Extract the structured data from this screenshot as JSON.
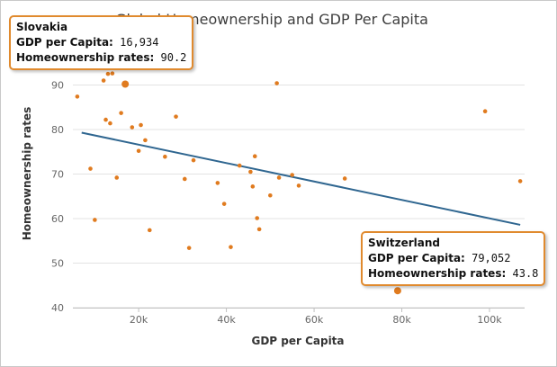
{
  "chart_data": {
    "type": "scatter",
    "title": "Global Homeownership and GDP Per Capita",
    "xlabel": "GDP per Capita",
    "ylabel": "Homeownership rates",
    "xlim": [
      5000,
      108000
    ],
    "ylim": [
      40,
      100
    ],
    "xticks": [
      20000,
      40000,
      60000,
      80000,
      100000
    ],
    "xtick_labels": [
      "20k",
      "40k",
      "60k",
      "80k",
      "100k"
    ],
    "yticks": [
      40,
      50,
      60,
      70,
      80,
      90
    ],
    "ytick_labels": [
      "40",
      "50",
      "60",
      "70",
      "80",
      "90"
    ],
    "marker_color": "#e07b1f",
    "trend_color": "#2f6690",
    "trendline": {
      "x": [
        7000,
        107000
      ],
      "y": [
        79.3,
        58.6
      ]
    },
    "points": [
      {
        "x": 6000,
        "y": 87.4
      },
      {
        "x": 9000,
        "y": 71.2
      },
      {
        "x": 10000,
        "y": 59.7
      },
      {
        "x": 12000,
        "y": 91.0
      },
      {
        "x": 12500,
        "y": 82.2
      },
      {
        "x": 13000,
        "y": 92.5
      },
      {
        "x": 13500,
        "y": 81.4
      },
      {
        "x": 14000,
        "y": 92.6
      },
      {
        "x": 15000,
        "y": 69.2
      },
      {
        "x": 16000,
        "y": 83.7
      },
      {
        "x": 16934,
        "y": 90.2,
        "highlight": true
      },
      {
        "x": 18500,
        "y": 80.5
      },
      {
        "x": 20000,
        "y": 75.2
      },
      {
        "x": 20500,
        "y": 81.0
      },
      {
        "x": 21500,
        "y": 77.6
      },
      {
        "x": 22500,
        "y": 57.4
      },
      {
        "x": 26000,
        "y": 73.9
      },
      {
        "x": 28500,
        "y": 82.9
      },
      {
        "x": 30500,
        "y": 68.9
      },
      {
        "x": 31500,
        "y": 53.4
      },
      {
        "x": 32500,
        "y": 73.1
      },
      {
        "x": 38000,
        "y": 68.0
      },
      {
        "x": 39500,
        "y": 63.3
      },
      {
        "x": 41000,
        "y": 53.6
      },
      {
        "x": 43000,
        "y": 71.9
      },
      {
        "x": 45500,
        "y": 70.5
      },
      {
        "x": 46000,
        "y": 67.2
      },
      {
        "x": 46500,
        "y": 74.0
      },
      {
        "x": 47000,
        "y": 60.1
      },
      {
        "x": 47500,
        "y": 57.6
      },
      {
        "x": 50000,
        "y": 65.2
      },
      {
        "x": 51500,
        "y": 90.4
      },
      {
        "x": 52000,
        "y": 69.2
      },
      {
        "x": 55000,
        "y": 69.8
      },
      {
        "x": 56500,
        "y": 67.4
      },
      {
        "x": 67000,
        "y": 69.0
      },
      {
        "x": 79052,
        "y": 43.8,
        "highlight": true
      },
      {
        "x": 99000,
        "y": 84.1
      },
      {
        "x": 107000,
        "y": 68.4
      }
    ]
  },
  "tooltips": [
    {
      "name": "Slovakia",
      "gdp_label": "GDP per Capita:",
      "gdp_value": "16,934",
      "rate_label": "Homeownership rates:",
      "rate_value": "90.2"
    },
    {
      "name": "Switzerland",
      "gdp_label": "GDP per Capita:",
      "gdp_value": "79,052",
      "rate_label": "Homeownership rates:",
      "rate_value": "43.8"
    }
  ]
}
